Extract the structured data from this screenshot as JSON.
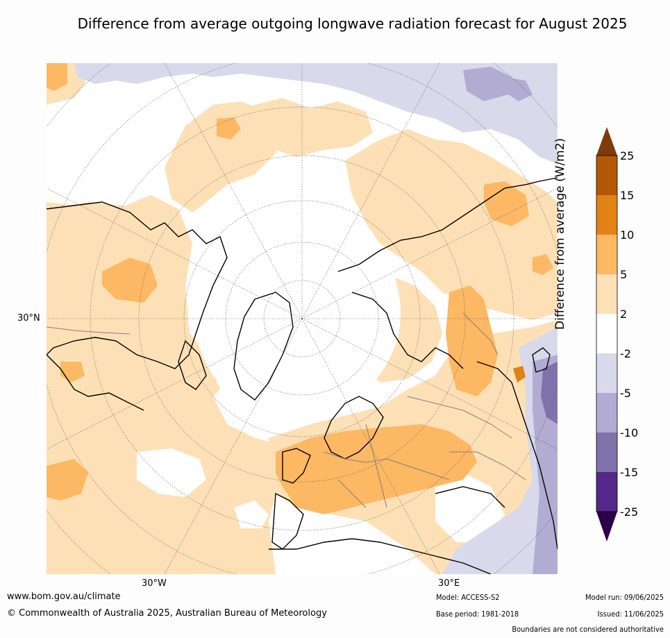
{
  "title": "Difference from average outgoing longwave radiation forecast for August 2025",
  "map": {
    "lat_label": "30°N",
    "lon_labels": [
      "30°W",
      "30°E"
    ]
  },
  "legend": {
    "title": "Difference from average (W/m2)",
    "ticks": [
      "25",
      "15",
      "10",
      "5",
      "2",
      "-2",
      "-5",
      "-10",
      "-15",
      "-25"
    ],
    "colors": {
      "over": "#7f3b08",
      "15_to_25": "#b35806",
      "10_to_15": "#e08214",
      "5_to_10": "#fdb863",
      "2_to_5": "#fee0b6",
      "-2_to_2": "#ffffff",
      "-5_to_-2": "#d8daeb",
      "-10_to_-5": "#b2abd2",
      "-15_to_-10": "#8073ac",
      "-25_to_-15": "#542788",
      "under": "#2d004b"
    }
  },
  "footer": {
    "url": "www.bom.gov.au/climate",
    "copyright": "© Commonwealth of Australia 2025, Australian Bureau of Meteorology",
    "model": "Model: ACCESS-S2",
    "base_period": "Base period: 1981-2018",
    "model_run": "Model run: 09/06/2025",
    "issued": "Issued: 11/06/2025",
    "disclaimer": "Boundaries are not considered authoritative"
  }
}
